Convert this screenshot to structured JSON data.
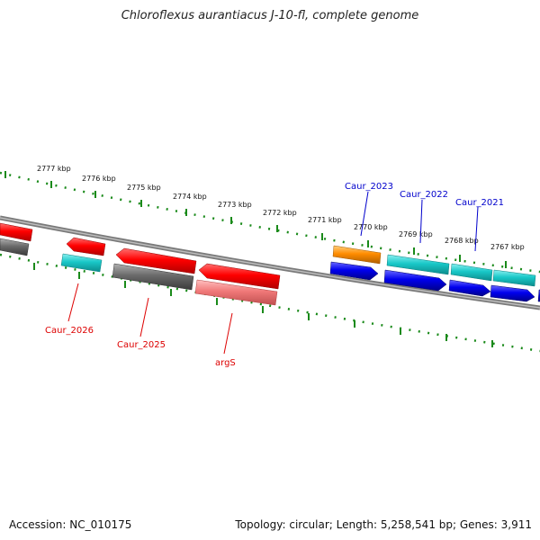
{
  "title": "Chloroflexus aurantiacus J-10-fl, complete genome",
  "footer": {
    "accession": "Accession: NC_010175",
    "summary": "Topology: circular; Length: 5,258,541 bp; Genes: 3,911"
  },
  "scale_labels": [
    "2777 kbp",
    "2776 kbp",
    "2775 kbp",
    "2774 kbp",
    "2773 kbp",
    "2772 kbp",
    "2771 kbp",
    "2770 kbp",
    "2769 kbp",
    "2768 kbp",
    "2767 kbp"
  ],
  "gene_labels": {
    "caur_2023": "Caur_2023",
    "caur_2022": "Caur_2022",
    "caur_2021": "Caur_2021",
    "caur_2026": "Caur_2026",
    "caur_2025": "Caur_2025",
    "args": "argS"
  },
  "colors": {
    "tick": "#1a8a1a",
    "backbone": "#7f7f7f",
    "red": "#ff0000",
    "dark_gray": "#666666",
    "cyan": "#19c8c8",
    "blue": "#0000ee",
    "orange": "#ff8c00",
    "pink": "#f07878",
    "label_blue": "#0000cc",
    "label_red": "#dd0000"
  }
}
